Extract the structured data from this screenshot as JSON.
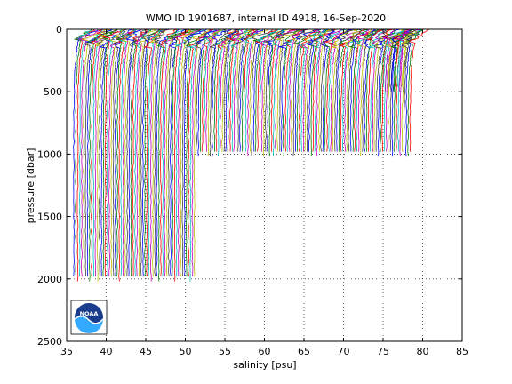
{
  "chart_data": {
    "type": "line",
    "title": "WMO ID 1901687, internal ID 4918, 16-Sep-2020",
    "xlabel": "salinity [psu]",
    "ylabel": "pressure [dbar]",
    "xlim": [
      35,
      85
    ],
    "ylim": [
      0,
      2500
    ],
    "y_reversed": true,
    "grid": "dotted",
    "x_ticks": [
      35,
      40,
      45,
      50,
      55,
      60,
      65,
      70,
      75,
      80,
      85
    ],
    "y_ticks": [
      0,
      500,
      1000,
      1500,
      2000,
      2500
    ],
    "series_description": "waterfall of salinity profiles; each profile is offset in salinity from the previous one",
    "profile_offset_psu": 0.25,
    "series": [
      {
        "group": "deep profiles (to ~2000 dbar)",
        "x_start": 35.9,
        "x_end": 51.2,
        "max_pressure": 2010
      },
      {
        "group": "mid profiles (to ~1000 dbar)",
        "x_start": 51.4,
        "x_end": 78.6,
        "max_pressure": 1010
      },
      {
        "group": "shallow profile tail",
        "x_start": 75.0,
        "x_end": 77.5,
        "max_pressure": 500
      }
    ],
    "colors": [
      "#0000ff",
      "#008000",
      "#ff0000",
      "#00bfbf",
      "#bf00bf",
      "#bfbf00",
      "#404040"
    ]
  },
  "logo": {
    "text": "NOAA",
    "name": "noaa-logo"
  }
}
